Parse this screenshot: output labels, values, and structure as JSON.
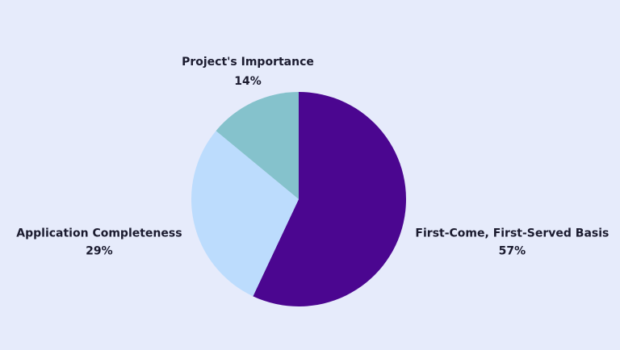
{
  "chart_data": {
    "type": "pie",
    "categories": [
      "First-Come, First-Served Basis",
      "Application Completeness",
      "Project's Importance"
    ],
    "values": [
      57,
      29,
      14
    ],
    "value_labels": [
      "57%",
      "29%",
      "14%"
    ],
    "colors": [
      "#4b0690",
      "#bcdcfd",
      "#85c2cc"
    ]
  }
}
